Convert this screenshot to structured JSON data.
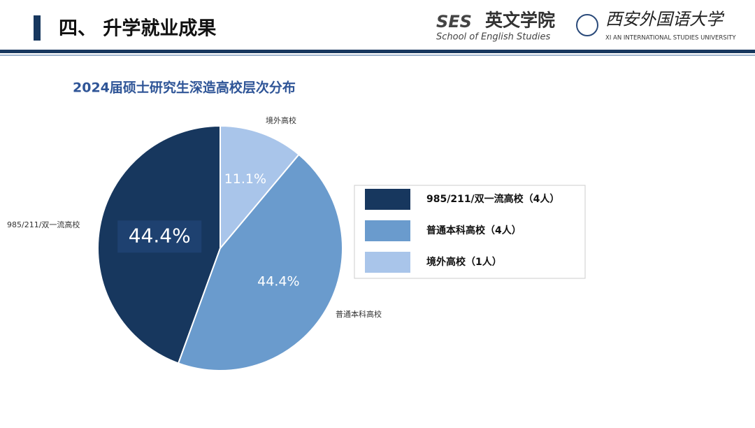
{
  "header": {
    "title": "四、 升学就业成果",
    "logo_mark": "SES",
    "school_cn": "英文学院",
    "school_en": "School of English Studies",
    "university_cn": "西安外国语大学",
    "university_en": "XI AN INTERNATIONAL STUDIES UNIVERSITY"
  },
  "chart_data": {
    "type": "pie",
    "title": "2024届硕士研究生深造高校层次分布",
    "categories": [
      "985/211/双一流高校",
      "普通本科高校",
      "境外高校"
    ],
    "values": [
      44.4,
      44.4,
      11.1
    ],
    "value_labels": [
      "44.4%",
      "44.4%",
      "11.1%"
    ],
    "colors": [
      "#17375e",
      "#6a9bcd",
      "#a9c5ea"
    ],
    "legend": [
      "985/211/双一流高校（4人）",
      "普通本科高校（4人）",
      "境外高校（1人）"
    ]
  }
}
